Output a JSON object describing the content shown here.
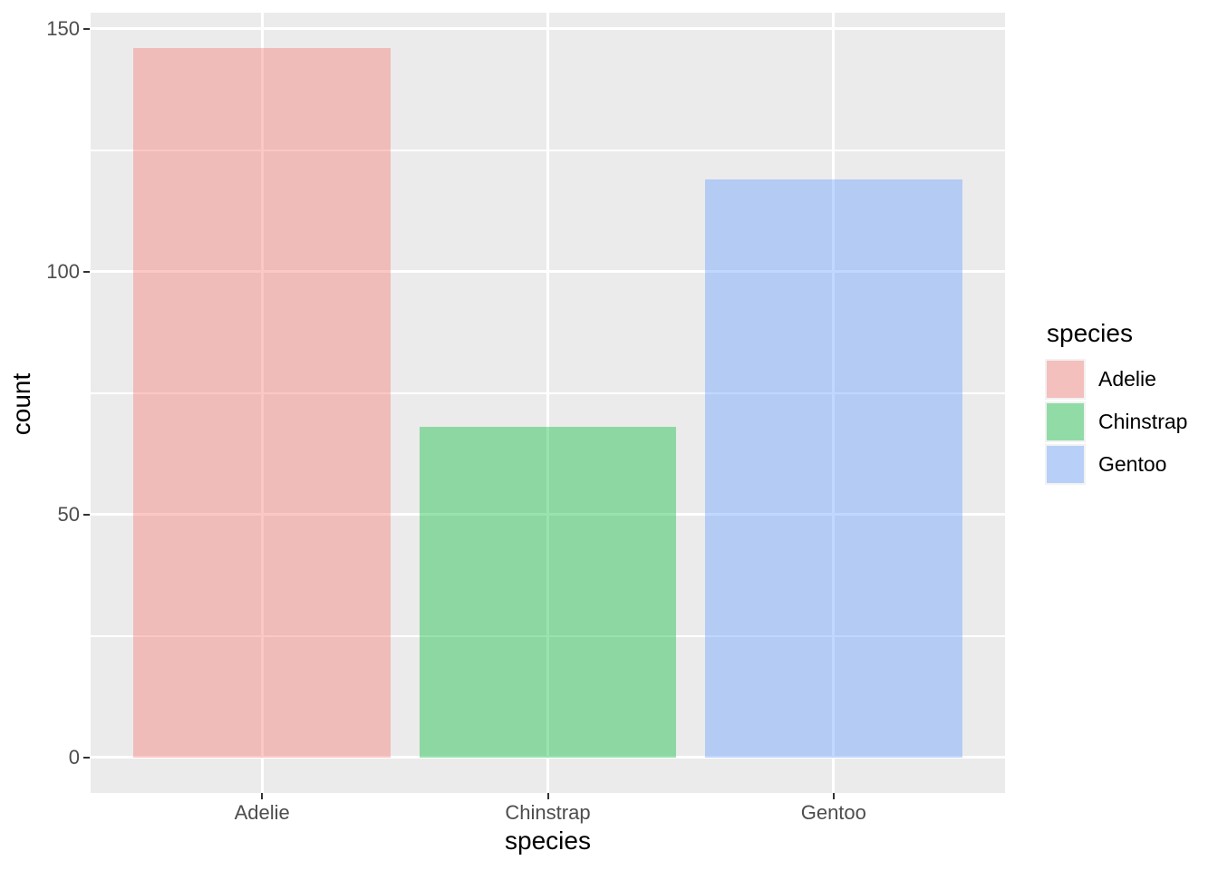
{
  "chart_data": {
    "type": "bar",
    "title": "",
    "xlabel": "species",
    "ylabel": "count",
    "categories": [
      "Adelie",
      "Chinstrap",
      "Gentoo"
    ],
    "values": [
      146,
      68,
      119
    ],
    "series_colors": [
      "#F8766D",
      "#00BA38",
      "#619CFF"
    ],
    "fill_alpha": 0.4,
    "bar_width_fraction": 0.9,
    "x_domain_units": [
      0.4,
      3.6
    ],
    "ylim": [
      0,
      146
    ],
    "y_expansion": 0.05,
    "y_major_ticks": [
      0,
      50,
      100,
      150
    ],
    "y_minor_ticks": [
      25,
      75,
      125
    ],
    "grid": true,
    "legend": {
      "title": "species",
      "position": "right",
      "entries": [
        {
          "label": "Adelie",
          "color": "#F8766D"
        },
        {
          "label": "Chinstrap",
          "color": "#00BA38"
        },
        {
          "label": "Gentoo",
          "color": "#619CFF"
        }
      ]
    }
  },
  "style": {
    "background": "#FFFFFF",
    "panel_bg": "#EBEBEB",
    "grid_color": "#FFFFFF",
    "tick_mark_color": "#333333",
    "tick_label_color": "#4D4D4D",
    "title_color": "#000000",
    "legend_key_bg": "#F2F2F2"
  }
}
